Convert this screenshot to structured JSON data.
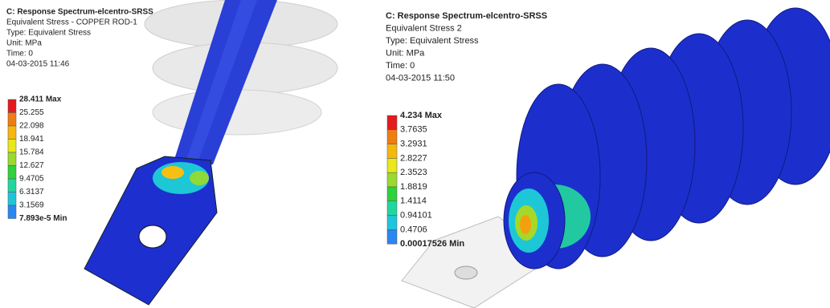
{
  "panels": [
    {
      "header": [
        "C: Response Spectrum-elcentro-SRSS",
        "Equivalent Stress - COPPER ROD-1",
        "Type: Equivalent Stress",
        "Unit: MPa",
        "Time: 0",
        "04-03-2015 11:46"
      ],
      "legend": [
        "28.411 Max",
        "25.255",
        "22.098",
        "18.941",
        "15.784",
        "12.627",
        "9.4705",
        "6.3137",
        "3.1569",
        "7.893e-5 Min"
      ]
    },
    {
      "header": [
        "C: Response Spectrum-elcentro-SRSS",
        "Equivalent Stress 2",
        "Type: Equivalent Stress",
        "Unit: MPa",
        "Time: 0",
        "04-03-2015 11:50"
      ],
      "legend": [
        "4.234 Max",
        "3.7635",
        "3.2931",
        "2.8227",
        "2.3523",
        "1.8819",
        "1.4114",
        "0.94101",
        "0.4706",
        "0.00017526 Min"
      ]
    }
  ]
}
